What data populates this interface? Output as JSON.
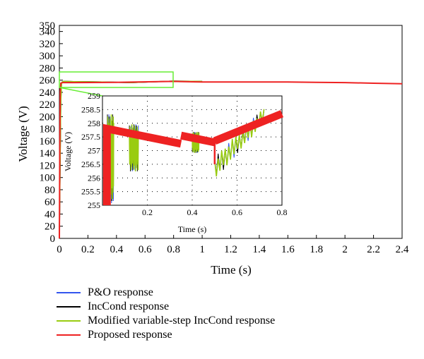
{
  "chart_data": [
    {
      "type": "line",
      "title": "",
      "xlabel": "Time (s)",
      "ylabel": "Voltage (V)",
      "xlim": [
        0,
        2.4
      ],
      "ylim": [
        0,
        350
      ],
      "grid": true,
      "legend_position": "bottom",
      "xticks": [
        "0",
        "0.2",
        "0.4",
        "0.6",
        "0.8",
        "1",
        "1.2",
        "1.4",
        "1.6",
        "1.8",
        "2",
        "2.2",
        "2.4"
      ],
      "yticks": [
        "0",
        "20",
        "40",
        "60",
        "80",
        "100",
        "120",
        "140",
        "160",
        "180",
        "200",
        "220",
        "240",
        "260",
        "280",
        "300",
        "320",
        "340",
        "350"
      ],
      "series": [
        {
          "name": "P&O response",
          "color": "#3355ee",
          "x": [
            0,
            0.005,
            0.01,
            0.015,
            0.02,
            0.03,
            0.1,
            0.3,
            0.5,
            0.8,
            1.0
          ],
          "y": [
            0,
            120,
            230,
            255,
            257,
            258,
            257.5,
            257,
            256,
            258.5,
            258
          ]
        },
        {
          "name": "IncCond response",
          "color": "#000000",
          "x": [
            0,
            0.005,
            0.01,
            0.015,
            0.02,
            0.03,
            0.1,
            0.3,
            0.5,
            0.8,
            1.0
          ],
          "y": [
            0,
            115,
            225,
            254,
            257,
            258,
            257.5,
            257,
            256,
            258.5,
            258
          ]
        },
        {
          "name": "Modified variable-step IncCond response",
          "color": "#99cc11",
          "x": [
            0,
            0.005,
            0.01,
            0.015,
            0.02,
            0.03,
            0.1,
            0.3,
            0.5,
            0.8,
            1.0
          ],
          "y": [
            0,
            110,
            220,
            253,
            257,
            258,
            257.5,
            257,
            256,
            258.5,
            258
          ]
        },
        {
          "name": "Proposed response",
          "color": "#ee2222",
          "x": [
            0,
            0.003,
            0.006,
            0.01,
            0.02,
            0.1,
            0.4,
            0.8,
            1.0,
            1.2,
            1.4,
            1.6,
            1.8,
            2.0,
            2.2,
            2.4
          ],
          "y": [
            0,
            150,
            240,
            255,
            256,
            256,
            256.5,
            258,
            257,
            257,
            257,
            257,
            256.5,
            256,
            255,
            254
          ]
        }
      ]
    },
    {
      "type": "line",
      "title": "",
      "xlabel": "Time (s)",
      "ylabel": "Voltage (V)",
      "xlim": [
        0,
        0.8
      ],
      "ylim": [
        255,
        259
      ],
      "grid": true,
      "xticks": [
        "0.2",
        "0.4",
        "0.6",
        "0.8"
      ],
      "yticks": [
        "255",
        "255.5",
        "256",
        "256.5",
        "257",
        "257.5",
        "258",
        "258.5",
        "259"
      ],
      "proposed": {
        "name": "Proposed response",
        "color": "#ee2222",
        "segments": [
          [
            [
              0.02,
              255.0
            ],
            [
              0.02,
              257.8
            ],
            [
              0.35,
              257.25
            ]
          ],
          [
            [
              0.35,
              257.55
            ],
            [
              0.5,
              257.3
            ]
          ],
          [
            [
              0.5,
              257.45
            ],
            [
              0.5,
              256.5
            ]
          ],
          [
            [
              0.5,
              257.35
            ],
            [
              0.8,
              258.35
            ]
          ]
        ]
      },
      "bursts": [
        {
          "t0": 0.02,
          "t1": 0.05,
          "low": 255.0,
          "high": 258.4
        },
        {
          "t0": 0.12,
          "t1": 0.16,
          "low": 256.2,
          "high": 258.0
        },
        {
          "t0": 0.4,
          "t1": 0.43,
          "low": 256.9,
          "high": 257.7
        },
        {
          "t0": 0.5,
          "t1": 0.72,
          "low": 255.9,
          "high": 258.6,
          "ramp": true
        }
      ]
    }
  ]
}
